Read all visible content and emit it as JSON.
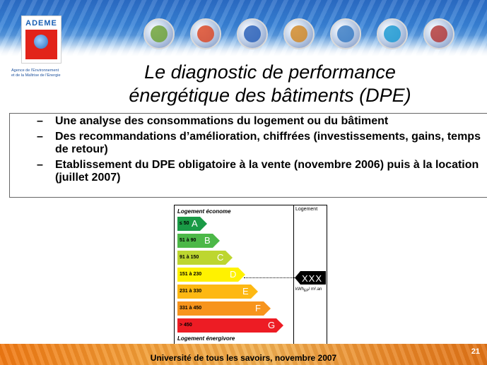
{
  "logo": {
    "name": "ADEME",
    "tagline_1": "Agence de l'Environnement",
    "tagline_2": "et de la Maîtrise de l'Energie"
  },
  "theme_icons": [
    {
      "name": "balloon-icon",
      "color": "#6fa23a"
    },
    {
      "name": "france-map-icon",
      "color": "#d94a2a"
    },
    {
      "name": "sun-icon",
      "color": "#2c62b8"
    },
    {
      "name": "house-icon",
      "color": "#d08a2a"
    },
    {
      "name": "chart-icon",
      "color": "#3b7cc4"
    },
    {
      "name": "wave-icon",
      "color": "#1e9ad2"
    },
    {
      "name": "hammer-icon",
      "color": "#b33b3b"
    }
  ],
  "title": {
    "line1": "Le diagnostic de performance",
    "line2": "énergétique des bâtiments (DPE)"
  },
  "bullets": [
    {
      "dash": "–",
      "text": "Une analyse des consommations du logement ou du bâtiment"
    },
    {
      "dash": "–",
      "text": "Des recommandations d’amélioration, chiffrées (investissements, gains, temps de retour)"
    },
    {
      "dash": "–",
      "text": "Etablissement du DPE obligatoire à la vente (novembre 2006) puis à la location (juillet 2007)"
    }
  ],
  "energy_label": {
    "top_label": "Logement économe",
    "bottom_label": "Logement énergivore",
    "column_header": "Logement",
    "pointer_value": "XXX",
    "unit_prefix": "kWh",
    "unit_sub": "EP",
    "unit_suffix": "/ m².an",
    "classes": [
      {
        "range": "≤ 50",
        "letter": "A",
        "color": "#1a9a46",
        "letter_color": "#ffffff"
      },
      {
        "range": "51 à 90",
        "letter": "B",
        "color": "#4cb848",
        "letter_color": "#ffffff"
      },
      {
        "range": "91 à 150",
        "letter": "C",
        "color": "#bdd630",
        "letter_color": "#ffffff"
      },
      {
        "range": "151 à 230",
        "letter": "D",
        "color": "#fff200",
        "letter_color": "#ffffff"
      },
      {
        "range": "231 à 330",
        "letter": "E",
        "color": "#fdb813",
        "letter_color": "#ffffff"
      },
      {
        "range": "331 à 450",
        "letter": "F",
        "color": "#f7941d",
        "letter_color": "#ffffff"
      },
      {
        "range": "> 450",
        "letter": "G",
        "color": "#ed1c24",
        "letter_color": "#ffffff"
      }
    ]
  },
  "footer": {
    "text": "Université de tous les savoirs, novembre 2007",
    "page_number": "21"
  }
}
